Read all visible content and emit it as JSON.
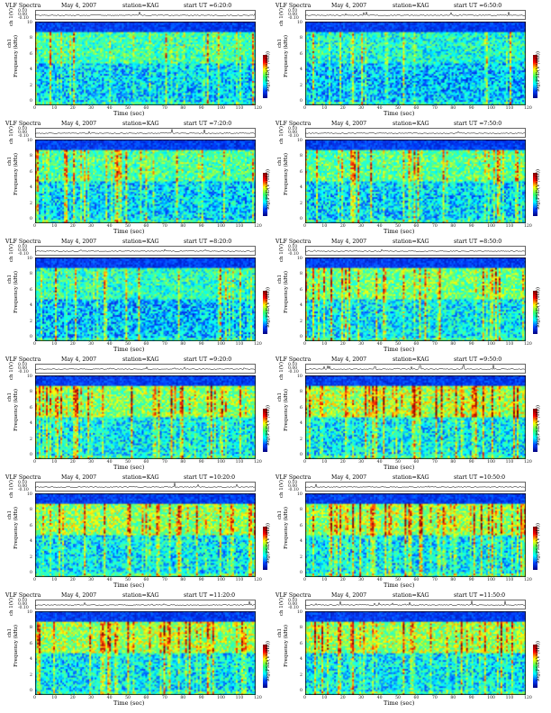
{
  "chart_data": [
    {
      "type": "heatmap",
      "title": "VLF Spectra",
      "date": "May 4, 2007",
      "station": "station=KAG",
      "start": "start UT =6:20:0",
      "ts_label": "ch 1(V)",
      "ts_ticks": [
        "0.10",
        "0.00",
        "-0.10"
      ],
      "ylabel": "Frequency (kHz)",
      "ylabel_ch": "ch1",
      "xlabel": "Time (sec)",
      "colorbar_label": "log(PSD(V²/Hz))",
      "xticks": [
        "0",
        "10",
        "20",
        "30",
        "40",
        "50",
        "60",
        "70",
        "80",
        "90",
        "100",
        "110",
        "120"
      ],
      "yticks": [
        "10",
        "8",
        "6",
        "4",
        "2",
        "0"
      ],
      "xlim": [
        0,
        120
      ],
      "ylim": [
        0,
        10
      ],
      "activity": 0.45,
      "noise_floor": 0.55,
      "seed": 3
    },
    {
      "type": "heatmap",
      "title": "VLF Spectra",
      "date": "May 4, 2007",
      "station": "station=KAG",
      "start": "start UT =6:50:0",
      "ts_label": "ch 1(V)",
      "ts_ticks": [
        "0.10",
        "0.00",
        "-0.10"
      ],
      "ylabel": "Frequency (kHz)",
      "ylabel_ch": "ch1",
      "xlabel": "Time (sec)",
      "colorbar_label": "log(PSD(V²/Hz))",
      "xticks": [
        "0",
        "10",
        "20",
        "30",
        "40",
        "50",
        "60",
        "70",
        "80",
        "90",
        "100",
        "110",
        "120"
      ],
      "yticks": [
        "10",
        "8",
        "6",
        "4",
        "2",
        "0"
      ],
      "xlim": [
        0,
        120
      ],
      "ylim": [
        0,
        10
      ],
      "activity": 0.35,
      "noise_floor": 0.5,
      "seed": 7
    },
    {
      "type": "heatmap",
      "title": "VLF Spectra",
      "date": "May 4, 2007",
      "station": "station=KAG",
      "start": "start UT =7:20:0",
      "ts_label": "ch 1(V)",
      "ts_ticks": [
        "0.10",
        "0.00",
        "-0.10"
      ],
      "ylabel": "Frequency (kHz)",
      "ylabel_ch": "ch1",
      "xlabel": "Time (sec)",
      "colorbar_label": "log(PSD(V²/Hz))",
      "xticks": [
        "0",
        "10",
        "20",
        "30",
        "40",
        "50",
        "60",
        "70",
        "80",
        "90",
        "100",
        "110",
        "120"
      ],
      "yticks": [
        "10",
        "8",
        "6",
        "4",
        "2",
        "0"
      ],
      "xlim": [
        0,
        120
      ],
      "ylim": [
        0,
        10
      ],
      "activity": 0.5,
      "noise_floor": 0.55,
      "seed": 11
    },
    {
      "type": "heatmap",
      "title": "VLF Spectra",
      "date": "May 4, 2007",
      "station": "station=KAG",
      "start": "start UT =7:50:0",
      "ts_label": "ch 1(V)",
      "ts_ticks": [
        "0.10",
        "0.00",
        "-0.10"
      ],
      "ylabel": "Frequency (kHz)",
      "ylabel_ch": "ch1",
      "xlabel": "Time (sec)",
      "colorbar_label": "log(PSD(V²/Hz))",
      "xticks": [
        "0",
        "10",
        "20",
        "30",
        "40",
        "50",
        "60",
        "70",
        "80",
        "90",
        "100",
        "110",
        "120"
      ],
      "yticks": [
        "10",
        "8",
        "6",
        "4",
        "2",
        "0"
      ],
      "xlim": [
        0,
        120
      ],
      "ylim": [
        0,
        10
      ],
      "activity": 0.55,
      "noise_floor": 0.55,
      "seed": 13
    },
    {
      "type": "heatmap",
      "title": "VLF Spectra",
      "date": "May 4, 2007",
      "station": "station=KAG",
      "start": "start UT =8:20:0",
      "ts_label": "ch 1(V)",
      "ts_ticks": [
        "0.10",
        "0.00",
        "-0.10"
      ],
      "ylabel": "Frequency (kHz)",
      "ylabel_ch": "ch1",
      "xlabel": "Time (sec)",
      "colorbar_label": "log(PSD(V²/Hz))",
      "xticks": [
        "0",
        "10",
        "20",
        "30",
        "40",
        "50",
        "60",
        "70",
        "80",
        "90",
        "100",
        "110",
        "120"
      ],
      "yticks": [
        "10",
        "8",
        "6",
        "4",
        "2",
        "0"
      ],
      "xlim": [
        0,
        120
      ],
      "ylim": [
        0,
        10
      ],
      "activity": 0.45,
      "noise_floor": 0.5,
      "seed": 17
    },
    {
      "type": "heatmap",
      "title": "VLF Spectra",
      "date": "May 4, 2007",
      "station": "station=KAG",
      "start": "start UT =8:50:0",
      "ts_label": "ch 1(V)",
      "ts_ticks": [
        "0.10",
        "0.00",
        "-0.10"
      ],
      "ylabel": "Frequency (kHz)",
      "ylabel_ch": "ch1",
      "xlabel": "Time (sec)",
      "colorbar_label": "log(PSD(V²/Hz))",
      "xticks": [
        "0",
        "10",
        "20",
        "30",
        "40",
        "50",
        "60",
        "70",
        "80",
        "90",
        "100",
        "110",
        "120"
      ],
      "yticks": [
        "10",
        "8",
        "6",
        "4",
        "2",
        "0"
      ],
      "xlim": [
        0,
        120
      ],
      "ylim": [
        0,
        10
      ],
      "activity": 0.55,
      "noise_floor": 0.6,
      "seed": 19
    },
    {
      "type": "heatmap",
      "title": "VLF Spectra",
      "date": "May 4, 2007",
      "station": "station=KAG",
      "start": "start UT =9:20:0",
      "ts_label": "ch 1(V)",
      "ts_ticks": [
        "0.10",
        "0.00",
        "-0.10"
      ],
      "ylabel": "Frequency (kHz)",
      "ylabel_ch": "ch1",
      "xlabel": "Time (sec)",
      "colorbar_label": "log(PSD(V²/Hz))",
      "xticks": [
        "0",
        "10",
        "20",
        "30",
        "40",
        "50",
        "60",
        "70",
        "80",
        "90",
        "100",
        "110",
        "120"
      ],
      "yticks": [
        "10",
        "8",
        "6",
        "4",
        "2",
        "0"
      ],
      "xlim": [
        0,
        120
      ],
      "ylim": [
        0,
        10
      ],
      "activity": 0.65,
      "noise_floor": 0.6,
      "seed": 23
    },
    {
      "type": "heatmap",
      "title": "VLF Spectra",
      "date": "May 4, 2007",
      "station": "station=KAG",
      "start": "start UT =9:50:0",
      "ts_label": "ch 1(V)",
      "ts_ticks": [
        "0.10",
        "0.00",
        "-0.10"
      ],
      "ylabel": "Frequency (kHz)",
      "ylabel_ch": "ch1",
      "xlabel": "Time (sec)",
      "colorbar_label": "log(PSD(V²/Hz))",
      "xticks": [
        "0",
        "10",
        "20",
        "30",
        "40",
        "50",
        "60",
        "70",
        "80",
        "90",
        "100",
        "110",
        "120"
      ],
      "yticks": [
        "10",
        "8",
        "6",
        "4",
        "2",
        "0"
      ],
      "xlim": [
        0,
        120
      ],
      "ylim": [
        0,
        10
      ],
      "activity": 0.8,
      "noise_floor": 0.6,
      "seed": 29
    },
    {
      "type": "heatmap",
      "title": "VLF Spectra",
      "date": "May 4, 2007",
      "station": "station=KAG",
      "start": "start UT =10:20:0",
      "ts_label": "ch 1(V)",
      "ts_ticks": [
        "0.10",
        "0.00",
        "-0.10"
      ],
      "ylabel": "Frequency (kHz)",
      "ylabel_ch": "ch1",
      "xlabel": "Time (sec)",
      "colorbar_label": "log(PSD(V²/Hz))",
      "xticks": [
        "0",
        "10",
        "20",
        "30",
        "40",
        "50",
        "60",
        "70",
        "80",
        "90",
        "100",
        "110",
        "120"
      ],
      "yticks": [
        "10",
        "8",
        "6",
        "4",
        "2",
        "0"
      ],
      "xlim": [
        0,
        120
      ],
      "ylim": [
        0,
        10
      ],
      "activity": 0.7,
      "noise_floor": 0.6,
      "seed": 31
    },
    {
      "type": "heatmap",
      "title": "VLF Spectra",
      "date": "May 4, 2007",
      "station": "station=KAG",
      "start": "start UT =10:50:0",
      "ts_label": "ch 1(V)",
      "ts_ticks": [
        "0.10",
        "0.00",
        "-0.10"
      ],
      "ylabel": "Frequency (kHz)",
      "ylabel_ch": "ch1",
      "xlabel": "Time (sec)",
      "colorbar_label": "log(PSD(V²/Hz))",
      "xticks": [
        "0",
        "10",
        "20",
        "30",
        "40",
        "50",
        "60",
        "70",
        "80",
        "90",
        "100",
        "110",
        "120"
      ],
      "yticks": [
        "10",
        "8",
        "6",
        "4",
        "2",
        "0"
      ],
      "xlim": [
        0,
        120
      ],
      "ylim": [
        0,
        10
      ],
      "activity": 0.7,
      "noise_floor": 0.6,
      "seed": 37
    },
    {
      "type": "heatmap",
      "title": "VLF Spectra",
      "date": "May 4, 2007",
      "station": "station=KAG",
      "start": "start UT =11:20:0",
      "ts_label": "ch 1(V)",
      "ts_ticks": [
        "0.10",
        "0.00",
        "-0.10"
      ],
      "ylabel": "Frequency (kHz)",
      "ylabel_ch": "ch1",
      "xlabel": "Time (sec)",
      "colorbar_label": "log(PSD(V²/Hz))",
      "xticks": [
        "0",
        "10",
        "20",
        "30",
        "40",
        "50",
        "60",
        "70",
        "80",
        "90",
        "100",
        "110",
        "120"
      ],
      "yticks": [
        "10",
        "8",
        "6",
        "4",
        "2",
        "0"
      ],
      "xlim": [
        0,
        120
      ],
      "ylim": [
        0,
        10
      ],
      "activity": 0.75,
      "noise_floor": 0.6,
      "seed": 41
    },
    {
      "type": "heatmap",
      "title": "VLF Spectra",
      "date": "May 4, 2007",
      "station": "station=KAG",
      "start": "start UT =11:50:0",
      "ts_label": "ch 1(V)",
      "ts_ticks": [
        "0.10",
        "0.00",
        "-0.10"
      ],
      "ylabel": "Frequency (kHz)",
      "ylabel_ch": "ch1",
      "xlabel": "Time (sec)",
      "colorbar_label": "log(PSD(V²/Hz))",
      "xticks": [
        "0",
        "10",
        "20",
        "30",
        "40",
        "50",
        "60",
        "70",
        "80",
        "90",
        "100",
        "110",
        "120"
      ],
      "yticks": [
        "10",
        "8",
        "6",
        "4",
        "2",
        "0"
      ],
      "xlim": [
        0,
        120
      ],
      "ylim": [
        0,
        10
      ],
      "activity": 0.75,
      "noise_floor": 0.6,
      "seed": 43
    }
  ]
}
